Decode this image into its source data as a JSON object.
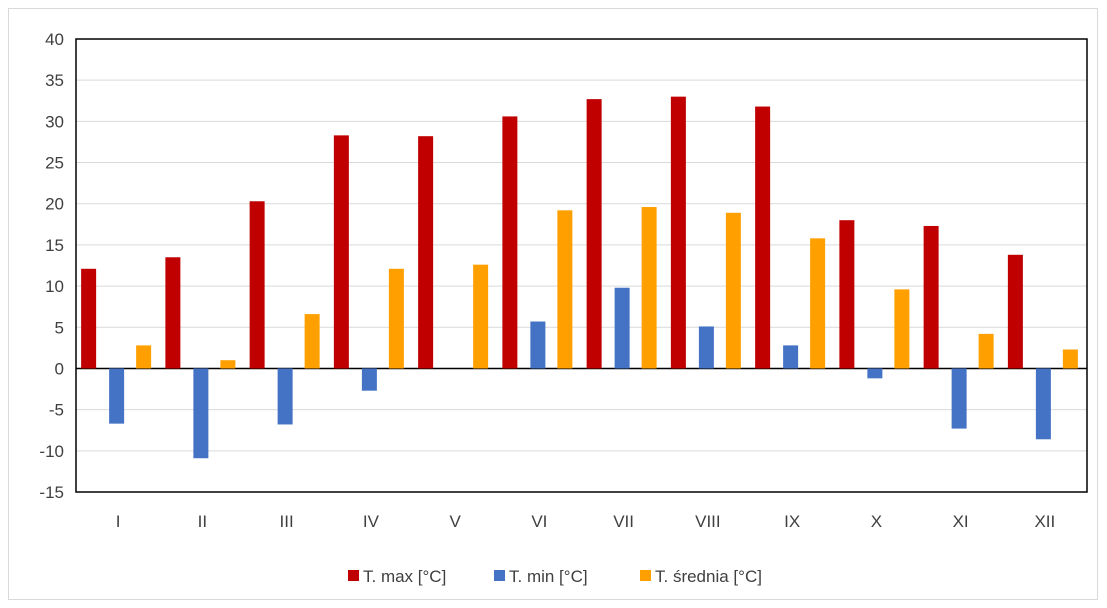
{
  "chart_data": {
    "type": "bar",
    "categories": [
      "I",
      "II",
      "III",
      "IV",
      "V",
      "VI",
      "VII",
      "VIII",
      "IX",
      "X",
      "XI",
      "XII"
    ],
    "series": [
      {
        "name": "T. max [°C]",
        "color": "#c00000",
        "values": [
          12.1,
          13.5,
          20.3,
          28.3,
          28.2,
          30.6,
          32.7,
          33.0,
          31.8,
          18.0,
          17.3,
          13.8
        ]
      },
      {
        "name": "T. min [°C]",
        "color": "#4472c4",
        "values": [
          -6.7,
          -10.9,
          -6.8,
          -2.7,
          0.0,
          5.7,
          9.8,
          5.1,
          2.8,
          -1.2,
          -7.3,
          -8.6
        ]
      },
      {
        "name": "T. średnia [°C]",
        "color": "#ffa000",
        "values": [
          2.8,
          1.0,
          6.6,
          12.1,
          12.6,
          19.2,
          19.6,
          18.9,
          15.8,
          9.6,
          4.2,
          2.3
        ]
      }
    ],
    "title": "",
    "xlabel": "",
    "ylabel": "",
    "ylim": [
      -15,
      40
    ],
    "yticks": [
      "40",
      "35",
      "30",
      "25",
      "20",
      "15",
      "10",
      "5",
      "0",
      "-5",
      "-10",
      "-15"
    ],
    "grid": true,
    "legend": "bottom"
  }
}
